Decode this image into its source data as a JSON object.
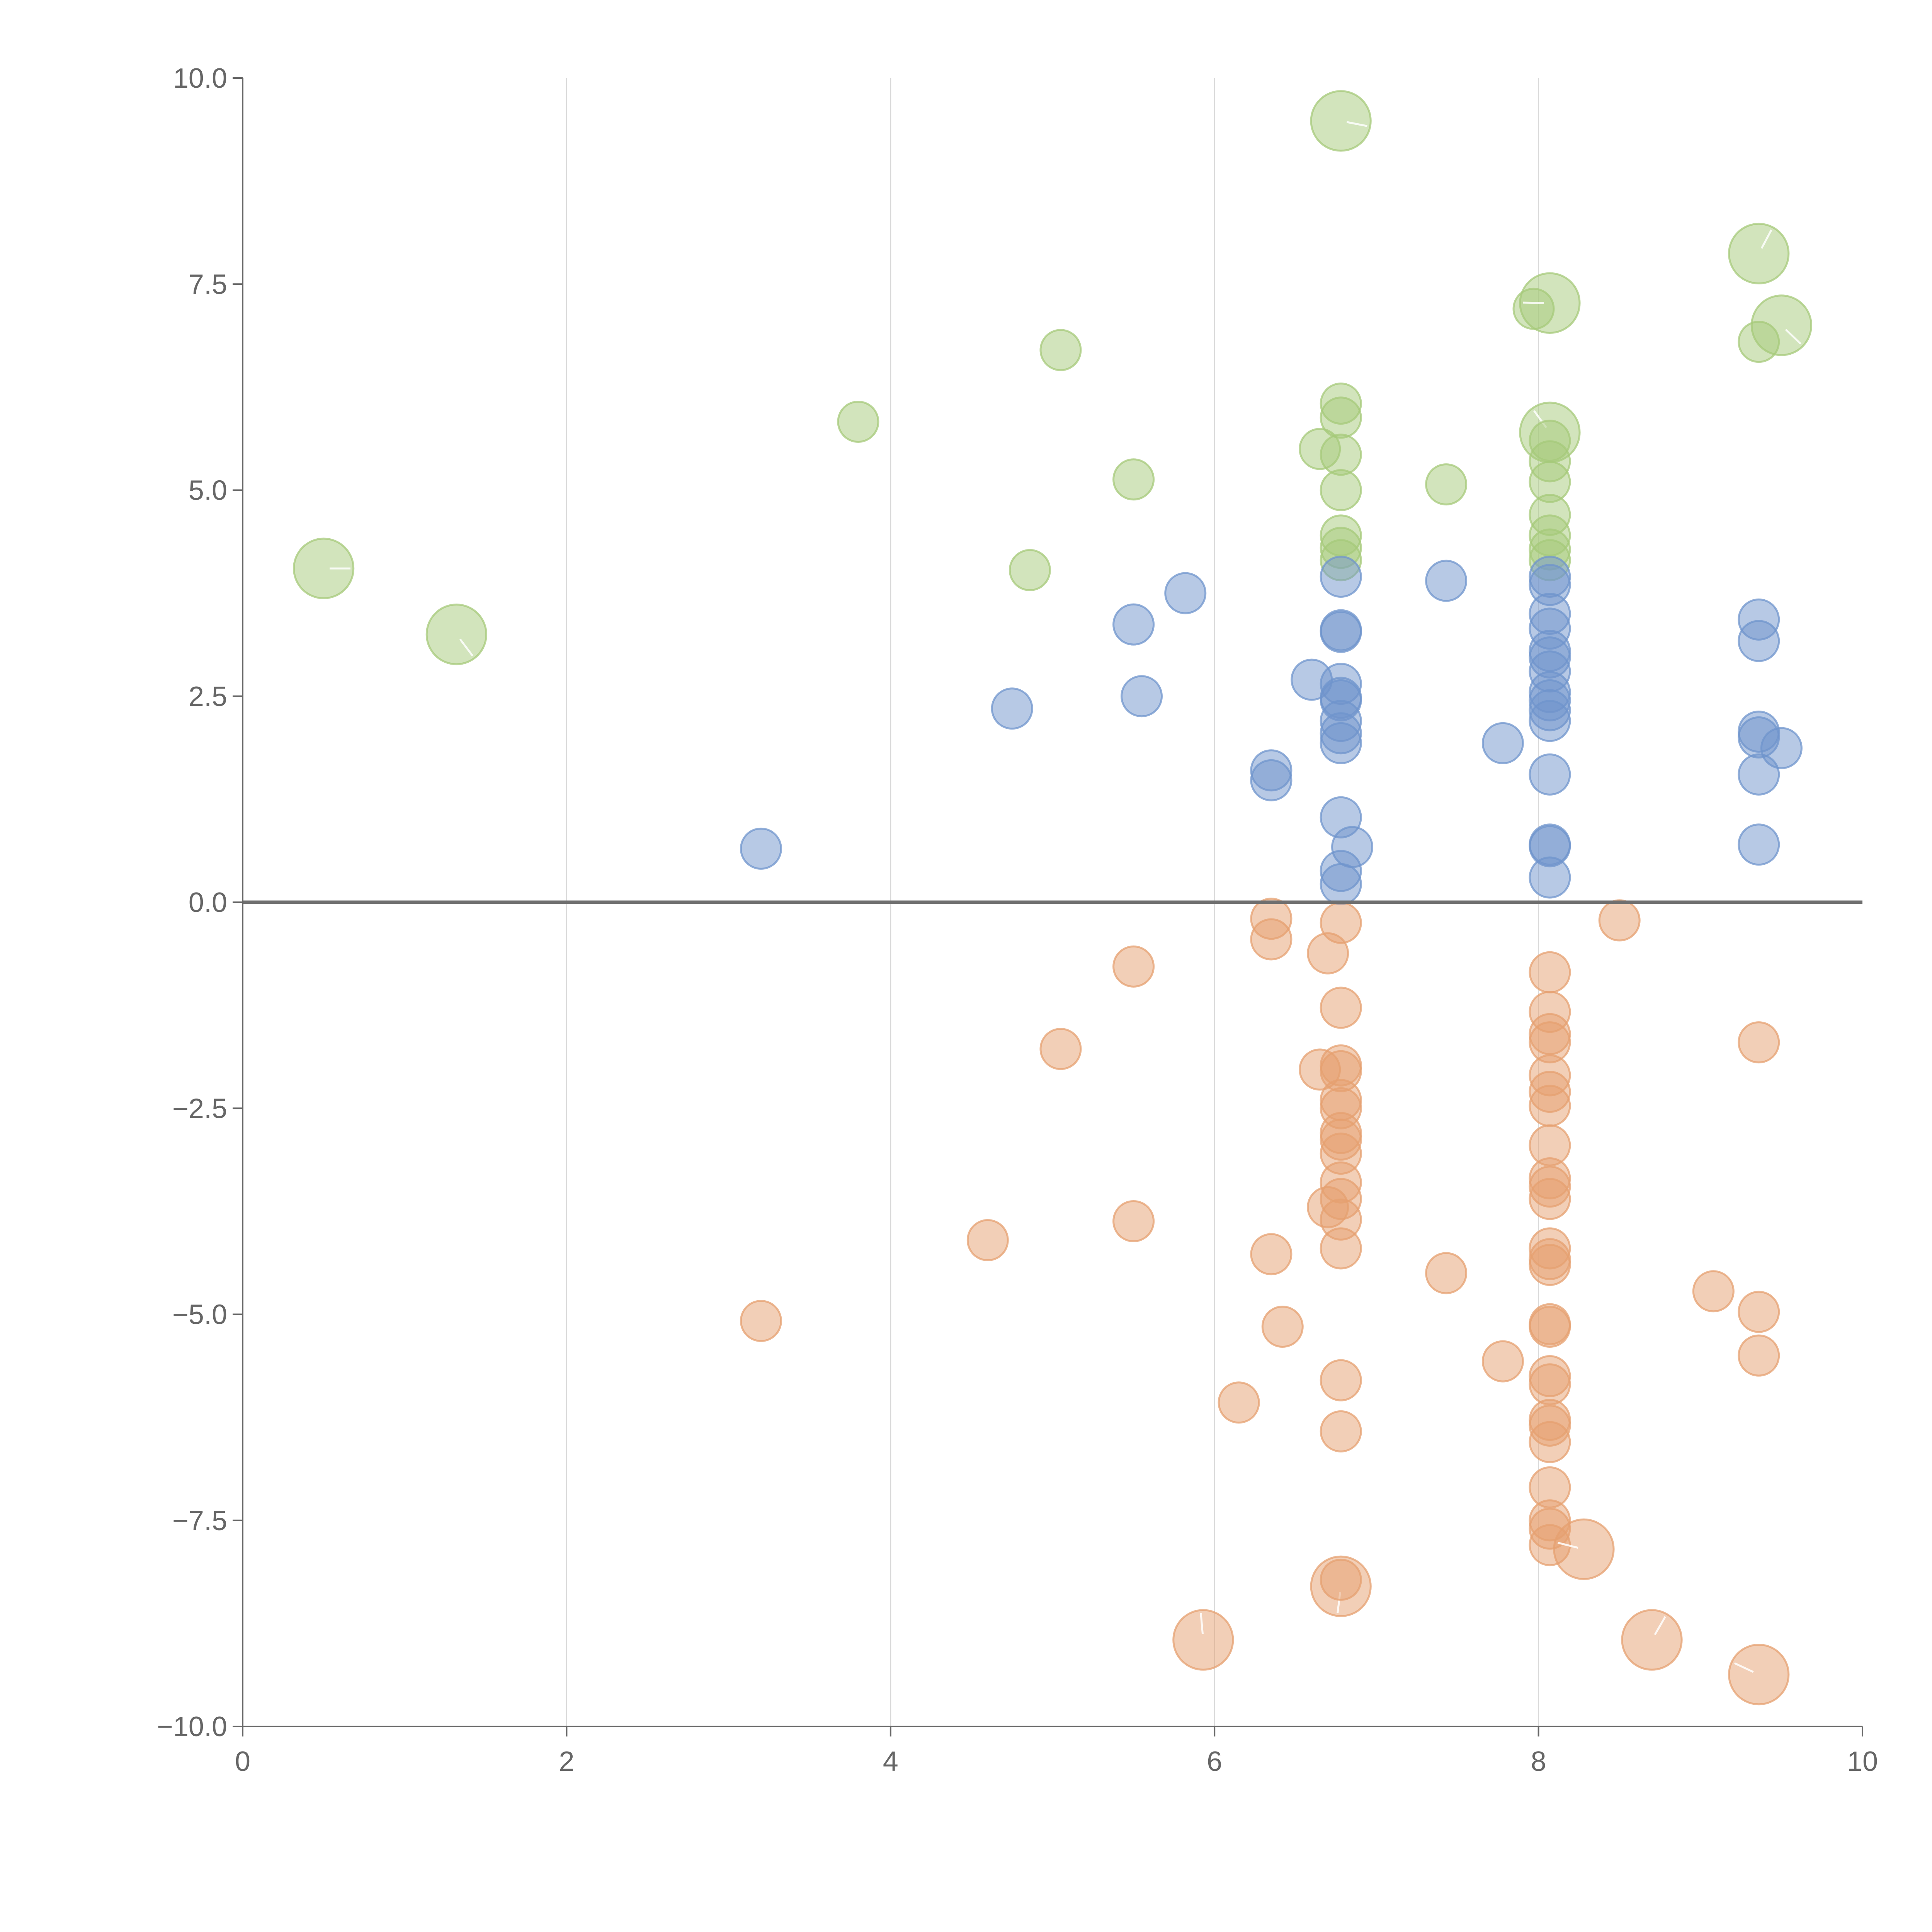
{
  "chart_data": {
    "type": "scatter",
    "variant": "bubble",
    "title": "",
    "xlabel": "",
    "ylabel": "",
    "xlim": [
      0,
      10
    ],
    "ylim": [
      -10,
      10
    ],
    "x_ticks": [
      0,
      2,
      4,
      6,
      8,
      10
    ],
    "x_tick_labels": [
      "0",
      "2",
      "4",
      "6",
      "8",
      "10"
    ],
    "y_ticks": [
      10,
      7.5,
      5,
      2.5,
      0,
      -2.5,
      -5,
      -7.5,
      -10
    ],
    "y_tick_labels": [
      "10.0",
      "7.5",
      "5.0",
      "2.5",
      "0.0",
      "−2.5",
      "−5.0",
      "−7.5",
      "−10.0"
    ],
    "grid": "vertical",
    "legend": "none",
    "zero_line": 0,
    "series": [
      {
        "name": "green",
        "color": "#a6c97a",
        "points": [
          {
            "x": 0.5,
            "y": 4.05,
            "size": 2.2
          },
          {
            "x": 1.32,
            "y": 3.25,
            "size": 2.2
          },
          {
            "x": 3.8,
            "y": 5.83,
            "size": 1
          },
          {
            "x": 4.86,
            "y": 4.03,
            "size": 1
          },
          {
            "x": 5.05,
            "y": 6.7,
            "size": 1
          },
          {
            "x": 5.5,
            "y": 5.13,
            "size": 1
          },
          {
            "x": 6.65,
            "y": 5.5,
            "size": 1
          },
          {
            "x": 6.78,
            "y": 9.48,
            "size": 2.2
          },
          {
            "x": 6.78,
            "y": 6.05,
            "size": 1
          },
          {
            "x": 6.78,
            "y": 5.88,
            "size": 1
          },
          {
            "x": 6.78,
            "y": 5.43,
            "size": 1
          },
          {
            "x": 6.78,
            "y": 5.0,
            "size": 1
          },
          {
            "x": 6.78,
            "y": 4.45,
            "size": 1
          },
          {
            "x": 6.78,
            "y": 4.3,
            "size": 1
          },
          {
            "x": 6.78,
            "y": 4.15,
            "size": 1
          },
          {
            "x": 7.43,
            "y": 5.07,
            "size": 1
          },
          {
            "x": 7.97,
            "y": 7.2,
            "size": 1
          },
          {
            "x": 8.07,
            "y": 7.27,
            "size": 2.2
          },
          {
            "x": 8.07,
            "y": 5.7,
            "size": 2.2
          },
          {
            "x": 8.07,
            "y": 5.6,
            "size": 1
          },
          {
            "x": 8.07,
            "y": 5.35,
            "size": 1
          },
          {
            "x": 8.07,
            "y": 5.1,
            "size": 1
          },
          {
            "x": 8.07,
            "y": 4.7,
            "size": 1
          },
          {
            "x": 8.07,
            "y": 4.45,
            "size": 1
          },
          {
            "x": 8.07,
            "y": 4.28,
            "size": 1
          },
          {
            "x": 8.07,
            "y": 4.15,
            "size": 1
          },
          {
            "x": 9.36,
            "y": 7.87,
            "size": 2.2
          },
          {
            "x": 9.36,
            "y": 6.8,
            "size": 1
          },
          {
            "x": 9.5,
            "y": 7.0,
            "size": 2.2
          }
        ]
      },
      {
        "name": "blue",
        "color": "#6f94cc",
        "points": [
          {
            "x": 3.2,
            "y": 0.65,
            "size": 1
          },
          {
            "x": 4.75,
            "y": 2.35,
            "size": 1
          },
          {
            "x": 5.5,
            "y": 3.37,
            "size": 1
          },
          {
            "x": 5.55,
            "y": 2.5,
            "size": 1
          },
          {
            "x": 5.82,
            "y": 3.75,
            "size": 1
          },
          {
            "x": 6.35,
            "y": 1.6,
            "size": 1
          },
          {
            "x": 6.35,
            "y": 1.48,
            "size": 1
          },
          {
            "x": 6.6,
            "y": 2.7,
            "size": 1
          },
          {
            "x": 6.78,
            "y": 3.95,
            "size": 1
          },
          {
            "x": 6.78,
            "y": 3.3,
            "size": 1
          },
          {
            "x": 6.78,
            "y": 3.28,
            "size": 1
          },
          {
            "x": 6.78,
            "y": 2.65,
            "size": 1
          },
          {
            "x": 6.78,
            "y": 2.48,
            "size": 1
          },
          {
            "x": 6.78,
            "y": 2.45,
            "size": 1
          },
          {
            "x": 6.78,
            "y": 2.2,
            "size": 1
          },
          {
            "x": 6.78,
            "y": 2.05,
            "size": 1
          },
          {
            "x": 6.78,
            "y": 1.93,
            "size": 1
          },
          {
            "x": 6.78,
            "y": 1.03,
            "size": 1
          },
          {
            "x": 6.85,
            "y": 0.67,
            "size": 1
          },
          {
            "x": 6.78,
            "y": 0.38,
            "size": 1
          },
          {
            "x": 6.78,
            "y": 0.22,
            "size": 1
          },
          {
            "x": 7.43,
            "y": 3.9,
            "size": 1
          },
          {
            "x": 7.78,
            "y": 1.93,
            "size": 1
          },
          {
            "x": 8.07,
            "y": 3.95,
            "size": 1
          },
          {
            "x": 8.07,
            "y": 3.85,
            "size": 1
          },
          {
            "x": 8.07,
            "y": 3.5,
            "size": 1
          },
          {
            "x": 8.07,
            "y": 3.32,
            "size": 1
          },
          {
            "x": 8.07,
            "y": 3.05,
            "size": 1
          },
          {
            "x": 8.07,
            "y": 2.97,
            "size": 1
          },
          {
            "x": 8.07,
            "y": 2.8,
            "size": 1
          },
          {
            "x": 8.07,
            "y": 2.55,
            "size": 1
          },
          {
            "x": 8.07,
            "y": 2.45,
            "size": 1
          },
          {
            "x": 8.07,
            "y": 2.33,
            "size": 1
          },
          {
            "x": 8.07,
            "y": 2.2,
            "size": 1
          },
          {
            "x": 8.07,
            "y": 1.55,
            "size": 1
          },
          {
            "x": 8.07,
            "y": 0.7,
            "size": 1
          },
          {
            "x": 8.07,
            "y": 0.68,
            "size": 1
          },
          {
            "x": 8.07,
            "y": 0.3,
            "size": 1
          },
          {
            "x": 9.36,
            "y": 3.43,
            "size": 1
          },
          {
            "x": 9.36,
            "y": 3.17,
            "size": 1
          },
          {
            "x": 9.36,
            "y": 2.07,
            "size": 1
          },
          {
            "x": 9.36,
            "y": 2.0,
            "size": 1
          },
          {
            "x": 9.5,
            "y": 1.87,
            "size": 1
          },
          {
            "x": 9.36,
            "y": 1.55,
            "size": 1
          },
          {
            "x": 9.36,
            "y": 0.7,
            "size": 1
          }
        ]
      },
      {
        "name": "orange",
        "color": "#e6a070",
        "points": [
          {
            "x": 3.2,
            "y": -5.08,
            "size": 1
          },
          {
            "x": 4.6,
            "y": -4.1,
            "size": 1
          },
          {
            "x": 5.05,
            "y": -1.78,
            "size": 1
          },
          {
            "x": 5.5,
            "y": -0.78,
            "size": 1
          },
          {
            "x": 5.5,
            "y": -3.87,
            "size": 1
          },
          {
            "x": 5.93,
            "y": -8.95,
            "size": 2.2
          },
          {
            "x": 6.15,
            "y": -6.07,
            "size": 1
          },
          {
            "x": 6.35,
            "y": -0.2,
            "size": 1
          },
          {
            "x": 6.35,
            "y": -0.45,
            "size": 1
          },
          {
            "x": 6.35,
            "y": -4.27,
            "size": 1
          },
          {
            "x": 6.42,
            "y": -5.15,
            "size": 1
          },
          {
            "x": 6.65,
            "y": -2.03,
            "size": 1
          },
          {
            "x": 6.7,
            "y": -0.62,
            "size": 1
          },
          {
            "x": 6.7,
            "y": -3.7,
            "size": 1
          },
          {
            "x": 6.78,
            "y": -0.25,
            "size": 1
          },
          {
            "x": 6.78,
            "y": -1.28,
            "size": 1
          },
          {
            "x": 6.78,
            "y": -1.98,
            "size": 1
          },
          {
            "x": 6.78,
            "y": -2.05,
            "size": 1
          },
          {
            "x": 6.78,
            "y": -2.4,
            "size": 1
          },
          {
            "x": 6.78,
            "y": -2.5,
            "size": 1
          },
          {
            "x": 6.78,
            "y": -2.8,
            "size": 1
          },
          {
            "x": 6.78,
            "y": -2.88,
            "size": 1
          },
          {
            "x": 6.78,
            "y": -3.05,
            "size": 1
          },
          {
            "x": 6.78,
            "y": -3.4,
            "size": 1
          },
          {
            "x": 6.78,
            "y": -3.6,
            "size": 1
          },
          {
            "x": 6.78,
            "y": -3.85,
            "size": 1
          },
          {
            "x": 6.78,
            "y": -4.2,
            "size": 1
          },
          {
            "x": 6.78,
            "y": -5.8,
            "size": 1
          },
          {
            "x": 6.78,
            "y": -6.42,
            "size": 1
          },
          {
            "x": 6.78,
            "y": -8.3,
            "size": 2.2
          },
          {
            "x": 6.78,
            "y": -8.22,
            "size": 1
          },
          {
            "x": 7.43,
            "y": -4.5,
            "size": 1
          },
          {
            "x": 7.78,
            "y": -5.57,
            "size": 1
          },
          {
            "x": 8.07,
            "y": -0.85,
            "size": 1
          },
          {
            "x": 8.07,
            "y": -1.33,
            "size": 1
          },
          {
            "x": 8.07,
            "y": -1.6,
            "size": 1
          },
          {
            "x": 8.07,
            "y": -1.7,
            "size": 1
          },
          {
            "x": 8.07,
            "y": -2.1,
            "size": 1
          },
          {
            "x": 8.07,
            "y": -2.3,
            "size": 1
          },
          {
            "x": 8.07,
            "y": -2.47,
            "size": 1
          },
          {
            "x": 8.07,
            "y": -2.95,
            "size": 1
          },
          {
            "x": 8.07,
            "y": -3.35,
            "size": 1
          },
          {
            "x": 8.07,
            "y": -3.45,
            "size": 1
          },
          {
            "x": 8.07,
            "y": -3.6,
            "size": 1
          },
          {
            "x": 8.07,
            "y": -4.2,
            "size": 1
          },
          {
            "x": 8.07,
            "y": -4.33,
            "size": 1
          },
          {
            "x": 8.07,
            "y": -4.4,
            "size": 1
          },
          {
            "x": 8.07,
            "y": -5.12,
            "size": 1
          },
          {
            "x": 8.07,
            "y": -5.15,
            "size": 1
          },
          {
            "x": 8.07,
            "y": -5.75,
            "size": 1
          },
          {
            "x": 8.07,
            "y": -5.85,
            "size": 1
          },
          {
            "x": 8.07,
            "y": -6.28,
            "size": 1
          },
          {
            "x": 8.07,
            "y": -6.35,
            "size": 1
          },
          {
            "x": 8.07,
            "y": -6.55,
            "size": 1
          },
          {
            "x": 8.07,
            "y": -7.1,
            "size": 1
          },
          {
            "x": 8.07,
            "y": -7.5,
            "size": 1
          },
          {
            "x": 8.07,
            "y": -7.6,
            "size": 1
          },
          {
            "x": 8.07,
            "y": -7.8,
            "size": 1
          },
          {
            "x": 8.28,
            "y": -7.85,
            "size": 2.2
          },
          {
            "x": 8.5,
            "y": -0.22,
            "size": 1
          },
          {
            "x": 8.7,
            "y": -8.95,
            "size": 2.2
          },
          {
            "x": 9.08,
            "y": -4.72,
            "size": 1
          },
          {
            "x": 9.36,
            "y": -1.7,
            "size": 1
          },
          {
            "x": 9.36,
            "y": -4.97,
            "size": 1
          },
          {
            "x": 9.36,
            "y": -5.5,
            "size": 1
          },
          {
            "x": 9.36,
            "y": -9.37,
            "size": 2.2
          }
        ]
      }
    ]
  }
}
